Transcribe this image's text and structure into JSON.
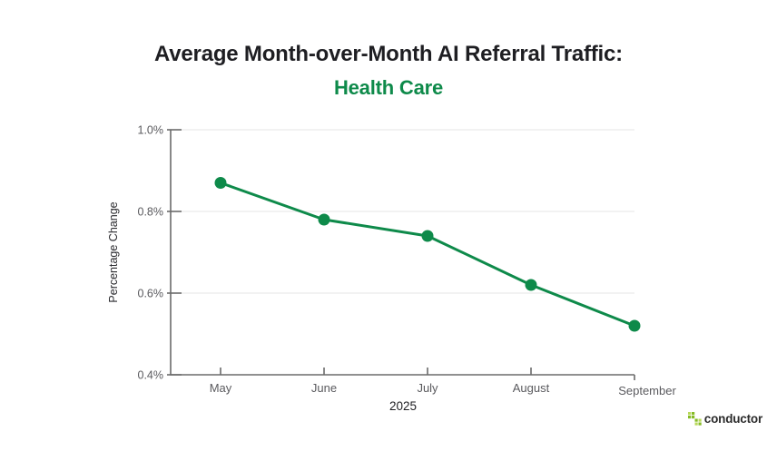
{
  "title": {
    "line1": "Average Month-over-Month AI Referral Traffic:",
    "line2": "Health Care"
  },
  "chart_data": {
    "type": "line",
    "title": "Average Month-over-Month AI Referral Traffic: Health Care",
    "categories": [
      "May",
      "June",
      "July",
      "August",
      "September"
    ],
    "values": [
      0.87,
      0.78,
      0.74,
      0.62,
      0.52
    ],
    "series_name": "Health Care",
    "xlabel": "2025",
    "ylabel": "Percentage Change",
    "ylim": [
      0.4,
      1.0
    ],
    "y_tick_values": [
      1.0,
      0.8,
      0.6,
      0.4
    ],
    "y_tick_labels": [
      "1.0%",
      "0.8%",
      "0.6%",
      "0.4%"
    ],
    "grid": "horizontal-light",
    "legend": "none",
    "line_color": "#0e8a4a",
    "marker": "filled-circle"
  },
  "colors": {
    "accent_green": "#0e8a4a",
    "title_text": "#1e1e22",
    "tick_label": "#5a5a5e",
    "axis_line": "#6b6b6b",
    "grid_line": "#e9e9e9",
    "logo_lime": "#86bb26",
    "logo_lime_light": "#b9d95b",
    "logo_text": "#2b2b2b"
  },
  "footer": {
    "logo_text": "conductor"
  }
}
